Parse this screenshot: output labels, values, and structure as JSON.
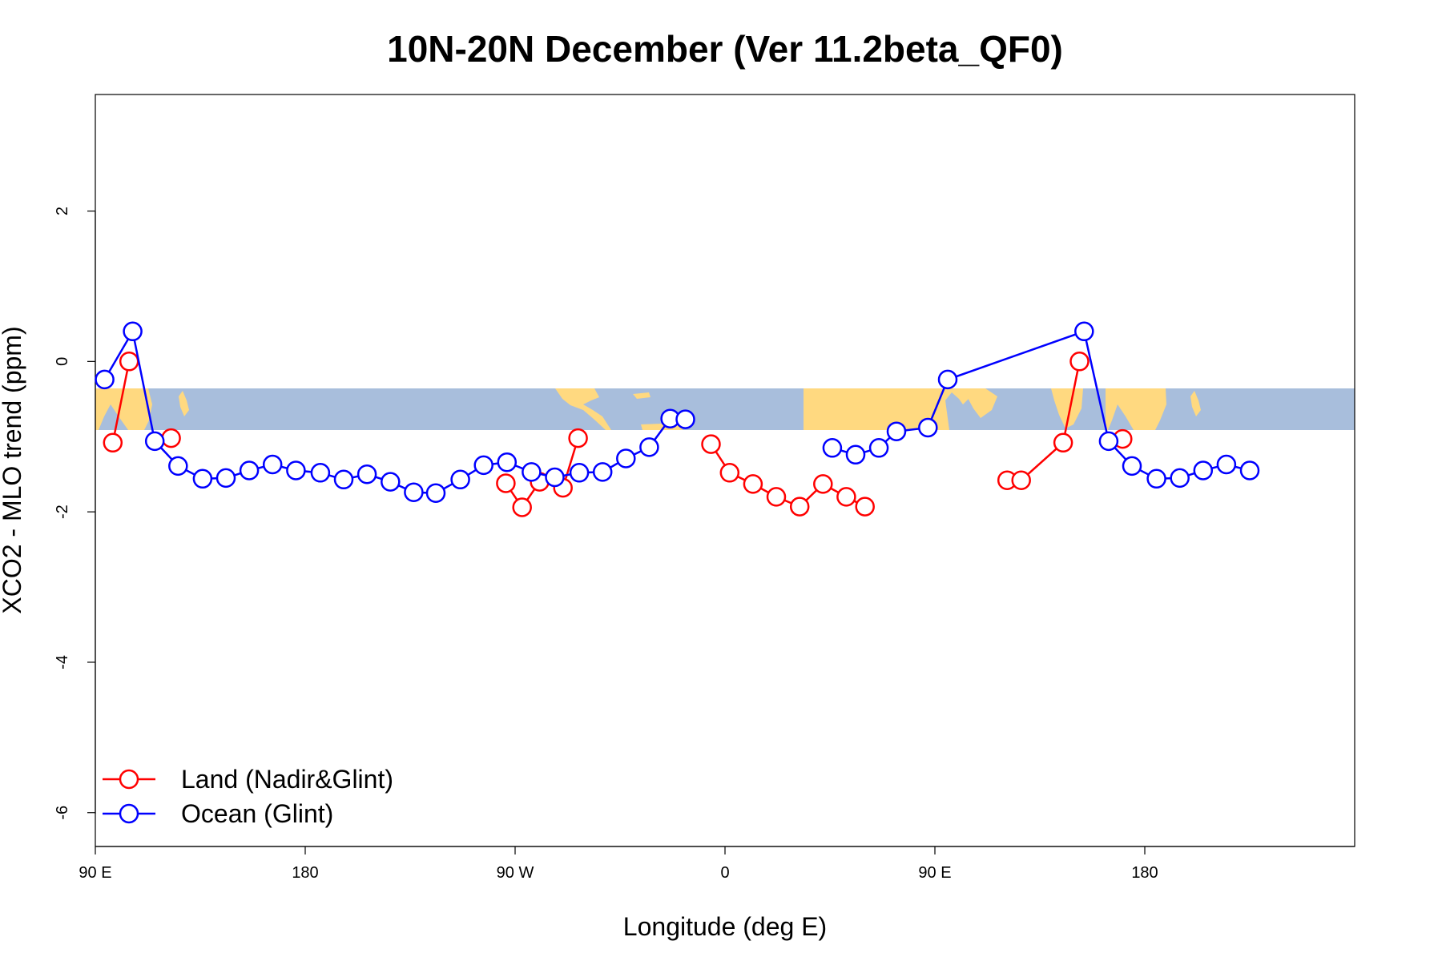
{
  "chart_data": {
    "type": "line",
    "title": "10N-20N December (Ver 11.2beta_QF0)",
    "xlabel": "Longitude (deg E)",
    "ylabel": "XCO2 - MLO trend (ppm)",
    "xlim": [
      90,
      630
    ],
    "ylim": [
      -6.45,
      3.55
    ],
    "x_ticks": [
      {
        "value": 90,
        "label": "90 E"
      },
      {
        "value": 180,
        "label": "180"
      },
      {
        "value": 270,
        "label": "90 W"
      },
      {
        "value": 360,
        "label": "0"
      },
      {
        "value": 450,
        "label": "90 E"
      },
      {
        "value": 540,
        "label": "180"
      }
    ],
    "y_ticks": [
      {
        "value": 2,
        "label": "2"
      },
      {
        "value": 0,
        "label": "0"
      },
      {
        "value": -2,
        "label": "-2"
      },
      {
        "value": -4,
        "label": "-4"
      },
      {
        "value": -6,
        "label": "-6"
      }
    ],
    "legend_position": "bottom-left",
    "background_map_band": {
      "lat_range": "10N-20N",
      "y_top": -0.35,
      "y_bottom": -0.9,
      "ocean_color": "#a8bedc",
      "land_color": "#ffd980"
    },
    "series": [
      {
        "name": "Land (Nadir&Glint)",
        "color": "#ff0000",
        "segments": [
          [
            [
              97.5,
              -1.08
            ],
            [
              104.5,
              0.0
            ]
          ],
          [
            [
              122.5,
              -1.02
            ]
          ],
          [
            [
              266,
              -1.62
            ],
            [
              273,
              -1.94
            ],
            [
              280.5,
              -1.6
            ],
            [
              290.5,
              -1.68
            ],
            [
              297,
              -1.02
            ]
          ],
          [
            [
              354,
              -1.1
            ],
            [
              362,
              -1.48
            ],
            [
              372,
              -1.63
            ],
            [
              382,
              -1.8
            ],
            [
              392,
              -1.93
            ],
            [
              402,
              -1.63
            ],
            [
              412,
              -1.8
            ],
            [
              420,
              -1.93
            ]
          ],
          [
            [
              481,
              -1.58
            ],
            [
              487,
              -1.58
            ],
            [
              505,
              -1.08
            ],
            [
              512,
              0.0
            ]
          ],
          [
            [
              530.5,
              -1.03
            ]
          ]
        ]
      },
      {
        "name": "Ocean (Glint)",
        "color": "#0000ff",
        "segments": [
          [
            [
              94,
              -0.24
            ],
            [
              106,
              0.4
            ],
            [
              115.5,
              -1.06
            ],
            [
              125.5,
              -1.39
            ],
            [
              136,
              -1.56
            ],
            [
              146,
              -1.55
            ],
            [
              156,
              -1.45
            ],
            [
              166,
              -1.37
            ],
            [
              176,
              -1.45
            ],
            [
              186.5,
              -1.48
            ],
            [
              196.5,
              -1.57
            ],
            [
              206.5,
              -1.5
            ],
            [
              216.5,
              -1.6
            ],
            [
              226.5,
              -1.74
            ],
            [
              236,
              -1.75
            ],
            [
              246.5,
              -1.57
            ],
            [
              256.5,
              -1.38
            ],
            [
              266.5,
              -1.34
            ],
            [
              277,
              -1.47
            ],
            [
              287,
              -1.54
            ],
            [
              297.5,
              -1.48
            ],
            [
              307.5,
              -1.47
            ],
            [
              317.5,
              -1.29
            ],
            [
              327.5,
              -1.14
            ],
            [
              336.5,
              -0.76
            ],
            [
              343,
              -0.77
            ]
          ],
          [
            [
              406,
              -1.15
            ],
            [
              416,
              -1.24
            ],
            [
              426,
              -1.15
            ],
            [
              433.5,
              -0.93
            ],
            [
              447,
              -0.88
            ],
            [
              455.5,
              -0.24
            ],
            [
              514,
              0.4
            ],
            [
              524.5,
              -1.06
            ],
            [
              534.5,
              -1.39
            ],
            [
              545,
              -1.56
            ],
            [
              555,
              -1.55
            ],
            [
              565,
              -1.45
            ],
            [
              575,
              -1.37
            ],
            [
              585,
              -1.45
            ]
          ]
        ]
      }
    ]
  }
}
